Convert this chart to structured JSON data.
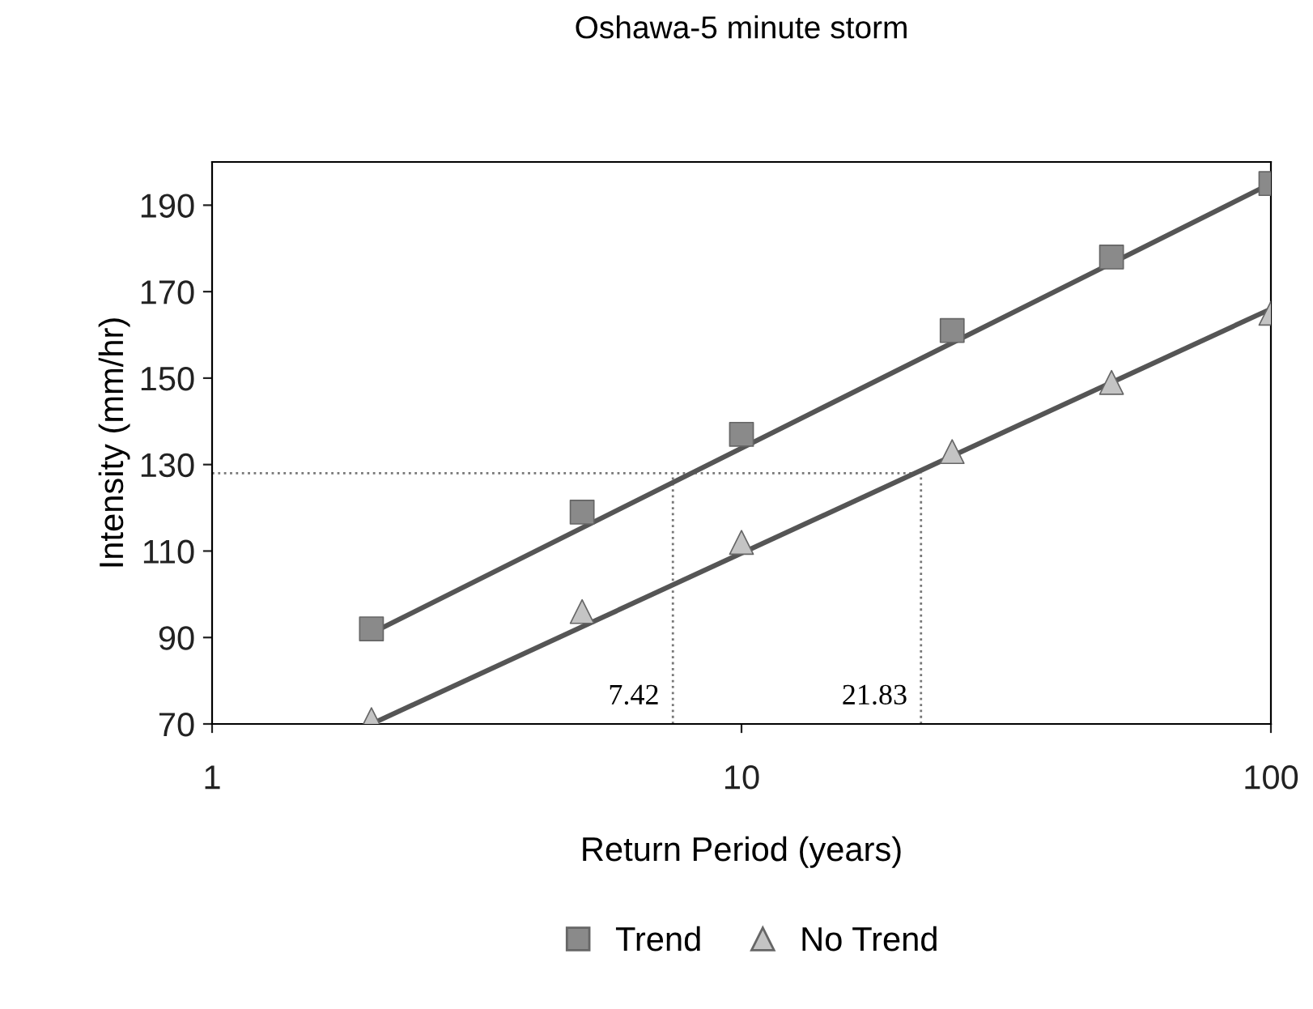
{
  "chart_data": {
    "type": "scatter",
    "title": "Oshawa-5 minute storm",
    "xlabel": "Return Period (years)",
    "ylabel": "Intensity (mm/hr)",
    "log": "x",
    "xlim": [
      1,
      100
    ],
    "xticks": [
      1,
      10,
      100
    ],
    "ylim": [
      70,
      200
    ],
    "yticks": [
      70,
      90,
      110,
      130,
      150,
      170,
      190
    ],
    "grid": false,
    "legend": "bottom",
    "series": [
      {
        "name": "Trend",
        "marker": "square",
        "color": "#8a8a8a",
        "x": [
          2,
          5,
          10,
          25,
          50,
          100
        ],
        "values": [
          92,
          119,
          137,
          161,
          178,
          195
        ]
      },
      {
        "name": "No Trend",
        "marker": "triangle",
        "color": "#c4c4c4",
        "x": [
          2,
          5,
          10,
          25,
          50,
          100
        ],
        "values": [
          71,
          96,
          112,
          133,
          149,
          165
        ]
      },
      {
        "type": "line",
        "marker": "none",
        "color": "#555555",
        "x": [
          2,
          100
        ],
        "values": [
          91,
          195
        ]
      },
      {
        "type": "line",
        "marker": "none",
        "color": "#555555",
        "x": [
          2,
          100
        ],
        "values": [
          70,
          166
        ]
      }
    ],
    "ref_lines": [
      {
        "axis": "y",
        "value": 128,
        "color": "#777777",
        "line_style": "dotted"
      },
      {
        "axis": "x",
        "value": 7.42,
        "label": "7.42",
        "color": "#777777",
        "line_style": "dotted"
      },
      {
        "axis": "x",
        "value": 21.83,
        "label": "21.83",
        "color": "#777777",
        "line_style": "dotted"
      }
    ]
  }
}
